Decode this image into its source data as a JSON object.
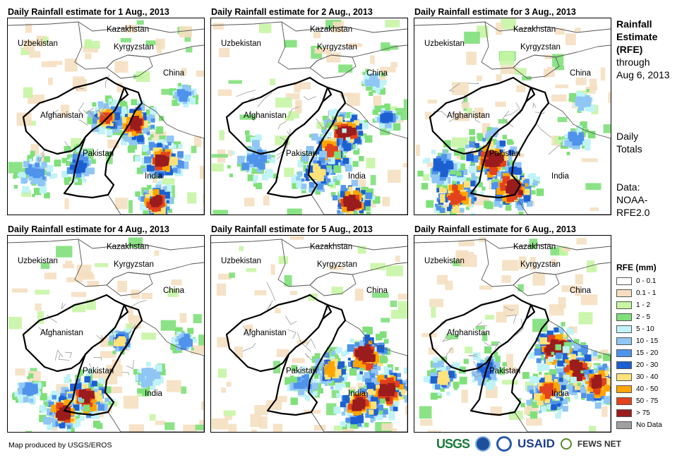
{
  "panels": [
    {
      "title": "Daily Rainfall estimate for 1 Aug., 2013"
    },
    {
      "title": "Daily Rainfall estimate for 2 Aug., 2013"
    },
    {
      "title": "Daily Rainfall estimate for 3 Aug., 2013"
    },
    {
      "title": "Daily Rainfall estimate for 4 Aug., 2013"
    },
    {
      "title": "Daily Rainfall estimate for 5 Aug., 2013"
    },
    {
      "title": "Daily Rainfall estimate for 6 Aug., 2013"
    }
  ],
  "map_labels": {
    "kazakhstan": "Kazakhstan",
    "uzbekistan": "Uzbekistan",
    "kyrgyzstan": "Kyrgyzstan",
    "china": "China",
    "afghanistan": "Afghanistan",
    "pakistan": "Pakistan",
    "india": "India"
  },
  "sidebar": {
    "title_line1": "Rainfall",
    "title_line2": "Estimate",
    "title_line3": "(RFE)",
    "through_line1": "through",
    "through_line2": "Aug 6, 2013",
    "daily_line1": "Daily",
    "daily_line2": "Totals",
    "data_line1": "Data:",
    "data_line2": "NOAA-",
    "data_line3": "RFE2.0"
  },
  "legend": {
    "title": "RFE (mm)",
    "items": [
      {
        "label": "0 - 0.1",
        "color": "#ffffff"
      },
      {
        "label": "0.1 - 1",
        "color": "#f5dfc0"
      },
      {
        "label": "1 - 2",
        "color": "#c6f5a4"
      },
      {
        "label": "2 - 5",
        "color": "#7fe07a"
      },
      {
        "label": "5 - 10",
        "color": "#bff3f7"
      },
      {
        "label": "10 - 15",
        "color": "#8fc6f5"
      },
      {
        "label": "15 - 20",
        "color": "#4f93ea"
      },
      {
        "label": "20 - 30",
        "color": "#1c5fd1"
      },
      {
        "label": "30 - 40",
        "color": "#ffe27a"
      },
      {
        "label": "40 - 50",
        "color": "#ffa500"
      },
      {
        "label": "50 - 75",
        "color": "#e2421c"
      },
      {
        "label": "> 75",
        "color": "#9b1c1c"
      },
      {
        "label": "No Data",
        "color": "#a0a0a0"
      }
    ]
  },
  "footer": {
    "credit": "Map produced by USGS/EROS",
    "logo_usgs": "USGS",
    "logo_usaid": "USAID",
    "logo_fews": "FEWS NET"
  }
}
